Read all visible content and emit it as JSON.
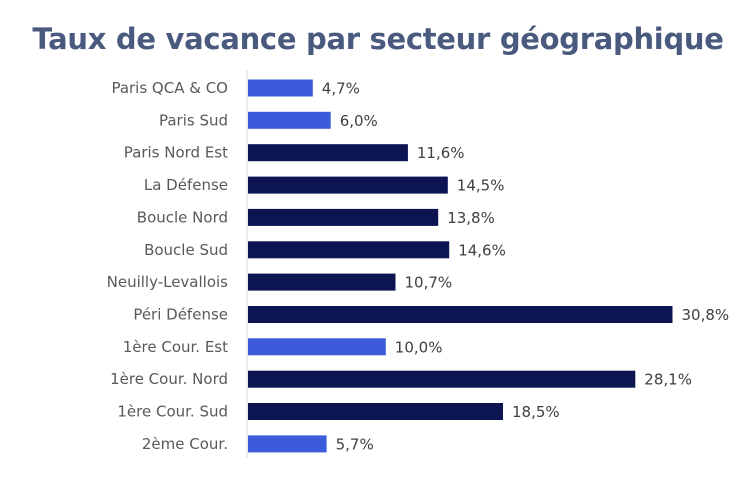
{
  "chart_data": {
    "type": "bar",
    "orientation": "horizontal",
    "title": "Taux de vacance par secteur géographique",
    "xlabel": "",
    "ylabel": "",
    "categories": [
      "Paris QCA & CO",
      "Paris Sud",
      "Paris Nord Est",
      "La Défense",
      "Boucle Nord",
      "Boucle Sud",
      "Neuilly-Levallois",
      "Péri Défense",
      "1ère Cour. Est",
      "1ère Cour. Nord",
      "1ère Cour. Sud",
      "2ème Cour."
    ],
    "values": [
      4.7,
      6.0,
      11.6,
      14.5,
      13.8,
      14.6,
      10.7,
      30.8,
      10.0,
      28.1,
      18.5,
      5.7
    ],
    "value_labels": [
      "4,7%",
      "6,0%",
      "11,6%",
      "14,5%",
      "13,8%",
      "14,6%",
      "10,7%",
      "30,8%",
      "10,0%",
      "28,1%",
      "18,5%",
      "5,7%"
    ],
    "bar_colors": [
      "#3b5bdb",
      "#3b5bdb",
      "#0d1452",
      "#0d1452",
      "#0d1452",
      "#0d1452",
      "#0d1452",
      "#0d1452",
      "#3b5bdb",
      "#0d1452",
      "#0d1452",
      "#3b5bdb"
    ],
    "xlim": [
      0,
      32
    ],
    "grid": false,
    "legend": "none",
    "colors": {
      "light_bar": "#3b5bdb",
      "dark_bar": "#0d1452",
      "title": "#4a5a7e",
      "axis": "#d9d9d9"
    }
  }
}
